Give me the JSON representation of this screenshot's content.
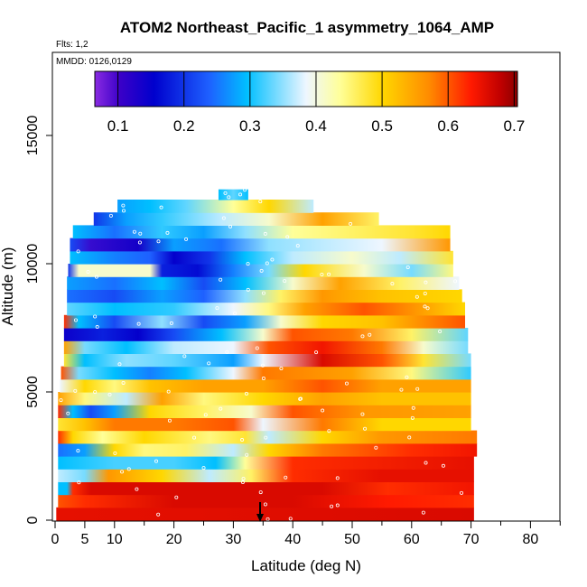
{
  "chart_data": {
    "type": "heatmap",
    "title": "ATOM2 Northeast_Pacific_1 asymmetry_1064_AMP",
    "annotations": {
      "flights": "Flts: 1,2",
      "dates": "MMDD: 0126,0129"
    },
    "xlabel": "Latitude (deg N)",
    "ylabel": "Altitude (m)",
    "xlim": [
      0,
      85
    ],
    "ylim": [
      0,
      17500
    ],
    "x_ticks": [
      0,
      5,
      10,
      20,
      30,
      40,
      50,
      60,
      70,
      80
    ],
    "x_tick_labels": [
      "0",
      "5",
      "10",
      "20",
      "30",
      "40",
      "50",
      "60",
      "70",
      "80"
    ],
    "y_ticks": [
      0,
      5000,
      10000,
      15000
    ],
    "y_tick_labels": [
      "0",
      "5000",
      "10000",
      "15000"
    ],
    "colorbar": {
      "min": 0.065,
      "max": 0.705,
      "ticks": [
        0.1,
        0.2,
        0.3,
        0.4,
        0.5,
        0.6,
        0.7
      ],
      "tick_labels": [
        "0.1",
        "0.2",
        "0.3",
        "0.4",
        "0.5",
        "0.6",
        "0.7"
      ],
      "colors": [
        "#8a2be2",
        "#0000cd",
        "#1e90ff",
        "#00bfff",
        "#f8f8ff",
        "#ffff99",
        "#ffd700",
        "#ff8c00",
        "#ff0000",
        "#b22222",
        "#8b0000"
      ]
    },
    "marker_latitude": 34.5,
    "bands": [
      {
        "y0": 0,
        "y1": 500,
        "x0": 0.2,
        "x1": 70.5,
        "stops": [
          [
            0.2,
            0.65
          ],
          [
            70.5,
            0.66
          ]
        ]
      },
      {
        "y0": 500,
        "y1": 1000,
        "x0": 0.5,
        "x1": 70.5,
        "stops": [
          [
            0.5,
            0.6
          ],
          [
            5,
            0.62
          ],
          [
            20,
            0.66
          ],
          [
            40,
            0.66
          ],
          [
            56,
            0.63
          ],
          [
            70.5,
            0.62
          ]
        ]
      },
      {
        "y0": 1000,
        "y1": 1500,
        "x0": 0.5,
        "x1": 70.5,
        "stops": [
          [
            0.5,
            0.3
          ],
          [
            2,
            0.3
          ],
          [
            3,
            0.62
          ],
          [
            6,
            0.66
          ],
          [
            30,
            0.66
          ],
          [
            45,
            0.66
          ],
          [
            56,
            0.62
          ],
          [
            70.5,
            0.64
          ]
        ]
      },
      {
        "y0": 1500,
        "y1": 2000,
        "x0": 0.5,
        "x1": 70.5,
        "stops": [
          [
            0.5,
            0.38
          ],
          [
            5,
            0.35
          ],
          [
            9,
            0.56
          ],
          [
            18,
            0.5
          ],
          [
            26,
            0.38
          ],
          [
            33,
            0.46
          ],
          [
            40,
            0.62
          ],
          [
            55,
            0.65
          ],
          [
            70.5,
            0.65
          ]
        ]
      },
      {
        "y0": 2000,
        "y1": 2500,
        "x0": 0.5,
        "x1": 70.5,
        "stops": [
          [
            0.5,
            0.3
          ],
          [
            10,
            0.33
          ],
          [
            20,
            0.33
          ],
          [
            27,
            0.3
          ],
          [
            32,
            0.44
          ],
          [
            40,
            0.62
          ],
          [
            70.5,
            0.65
          ]
        ]
      },
      {
        "y0": 2500,
        "y1": 3000,
        "x0": 0.5,
        "x1": 71,
        "stops": [
          [
            0.5,
            0.25
          ],
          [
            5,
            0.28
          ],
          [
            10,
            0.5
          ],
          [
            15,
            0.45
          ],
          [
            22,
            0.46
          ],
          [
            30,
            0.38
          ],
          [
            36,
            0.5
          ],
          [
            45,
            0.58
          ],
          [
            60,
            0.62
          ],
          [
            71,
            0.64
          ]
        ]
      },
      {
        "y0": 3000,
        "y1": 3500,
        "x0": 0.5,
        "x1": 71,
        "stops": [
          [
            0.5,
            0.62
          ],
          [
            3,
            0.5
          ],
          [
            8,
            0.44
          ],
          [
            15,
            0.5
          ],
          [
            26,
            0.45
          ],
          [
            32,
            0.48
          ],
          [
            36,
            0.38
          ],
          [
            45,
            0.5
          ],
          [
            55,
            0.56
          ],
          [
            71,
            0.58
          ]
        ]
      },
      {
        "y0": 3500,
        "y1": 4000,
        "x0": 0.5,
        "x1": 70,
        "stops": [
          [
            0.5,
            0.48
          ],
          [
            5,
            0.52
          ],
          [
            10,
            0.58
          ],
          [
            20,
            0.58
          ],
          [
            30,
            0.6
          ],
          [
            35,
            0.4
          ],
          [
            45,
            0.58
          ],
          [
            55,
            0.5
          ],
          [
            70,
            0.5
          ]
        ]
      },
      {
        "y0": 4000,
        "y1": 4500,
        "x0": 0.5,
        "x1": 70,
        "stops": [
          [
            0.5,
            0.62
          ],
          [
            3,
            0.3
          ],
          [
            6,
            0.22
          ],
          [
            10,
            0.28
          ],
          [
            16,
            0.5
          ],
          [
            25,
            0.46
          ],
          [
            33,
            0.42
          ],
          [
            40,
            0.6
          ],
          [
            52,
            0.56
          ],
          [
            70,
            0.55
          ]
        ]
      },
      {
        "y0": 4500,
        "y1": 5000,
        "x0": 0.5,
        "x1": 70,
        "stops": [
          [
            0.5,
            0.55
          ],
          [
            5,
            0.45
          ],
          [
            12,
            0.38
          ],
          [
            18,
            0.55
          ],
          [
            25,
            0.45
          ],
          [
            35,
            0.5
          ],
          [
            45,
            0.55
          ],
          [
            55,
            0.52
          ],
          [
            70,
            0.52
          ]
        ]
      },
      {
        "y0": 5000,
        "y1": 5500,
        "x0": 0.8,
        "x1": 70,
        "stops": [
          [
            0.8,
            0.4
          ],
          [
            5,
            0.5
          ],
          [
            10,
            0.45
          ],
          [
            16,
            0.52
          ],
          [
            25,
            0.55
          ],
          [
            35,
            0.55
          ],
          [
            45,
            0.6
          ],
          [
            55,
            0.55
          ],
          [
            70,
            0.55
          ]
        ]
      },
      {
        "y0": 5500,
        "y1": 6000,
        "x0": 1,
        "x1": 70,
        "stops": [
          [
            1,
            0.6
          ],
          [
            4,
            0.35
          ],
          [
            10,
            0.3
          ],
          [
            16,
            0.26
          ],
          [
            22,
            0.3
          ],
          [
            30,
            0.4
          ],
          [
            35,
            0.58
          ],
          [
            50,
            0.55
          ],
          [
            60,
            0.45
          ],
          [
            70,
            0.32
          ]
        ]
      },
      {
        "y0": 6000,
        "y1": 6500,
        "x0": 1.5,
        "x1": 70,
        "stops": [
          [
            1.5,
            0.48
          ],
          [
            5,
            0.3
          ],
          [
            12,
            0.36
          ],
          [
            20,
            0.34
          ],
          [
            30,
            0.28
          ],
          [
            35,
            0.4
          ],
          [
            45,
            0.66
          ],
          [
            55,
            0.6
          ],
          [
            62,
            0.48
          ],
          [
            70,
            0.35
          ]
        ]
      },
      {
        "y0": 6500,
        "y1": 7000,
        "x0": 1.5,
        "x1": 69.5,
        "stops": [
          [
            1.5,
            0.55
          ],
          [
            5,
            0.35
          ],
          [
            12,
            0.3
          ],
          [
            20,
            0.38
          ],
          [
            30,
            0.4
          ],
          [
            36,
            0.6
          ],
          [
            45,
            0.64
          ],
          [
            55,
            0.58
          ],
          [
            62,
            0.42
          ],
          [
            69.5,
            0.35
          ]
        ]
      },
      {
        "y0": 7000,
        "y1": 7500,
        "x0": 1.5,
        "x1": 69.5,
        "stops": [
          [
            1.5,
            0.12
          ],
          [
            8,
            0.18
          ],
          [
            14,
            0.14
          ],
          [
            20,
            0.22
          ],
          [
            28,
            0.3
          ],
          [
            35,
            0.42
          ],
          [
            40,
            0.6
          ],
          [
            50,
            0.58
          ],
          [
            60,
            0.46
          ],
          [
            69.5,
            0.34
          ]
        ]
      },
      {
        "y0": 7500,
        "y1": 8000,
        "x0": 1.5,
        "x1": 69,
        "stops": [
          [
            1.5,
            0.62
          ],
          [
            4,
            0.3
          ],
          [
            10,
            0.22
          ],
          [
            18,
            0.36
          ],
          [
            25,
            0.22
          ],
          [
            32,
            0.28
          ],
          [
            38,
            0.42
          ],
          [
            45,
            0.5
          ],
          [
            55,
            0.52
          ],
          [
            69,
            0.6
          ]
        ]
      },
      {
        "y0": 8000,
        "y1": 8500,
        "x0": 2,
        "x1": 69,
        "stops": [
          [
            2,
            0.34
          ],
          [
            10,
            0.3
          ],
          [
            20,
            0.32
          ],
          [
            30,
            0.4
          ],
          [
            36,
            0.45
          ],
          [
            42,
            0.55
          ],
          [
            52,
            0.6
          ],
          [
            62,
            0.55
          ],
          [
            69,
            0.5
          ]
        ]
      },
      {
        "y0": 8500,
        "y1": 9000,
        "x0": 2,
        "x1": 68.5,
        "stops": [
          [
            2,
            0.25
          ],
          [
            10,
            0.22
          ],
          [
            18,
            0.28
          ],
          [
            25,
            0.24
          ],
          [
            32,
            0.36
          ],
          [
            38,
            0.46
          ],
          [
            45,
            0.56
          ],
          [
            55,
            0.52
          ],
          [
            68.5,
            0.5
          ]
        ]
      },
      {
        "y0": 9000,
        "y1": 9500,
        "x0": 2,
        "x1": 68,
        "stops": [
          [
            2,
            0.28
          ],
          [
            10,
            0.25
          ],
          [
            18,
            0.3
          ],
          [
            25,
            0.22
          ],
          [
            32,
            0.3
          ],
          [
            40,
            0.42
          ],
          [
            48,
            0.55
          ],
          [
            58,
            0.46
          ],
          [
            68,
            0.4
          ]
        ]
      },
      {
        "y0": 9500,
        "y1": 10000,
        "x0": 2.2,
        "x1": 67,
        "stops": [
          [
            2.2,
            0.2
          ],
          [
            4,
            0.42
          ],
          [
            16,
            0.42
          ],
          [
            18,
            0.18
          ],
          [
            24,
            0.16
          ],
          [
            30,
            0.26
          ],
          [
            36,
            0.35
          ],
          [
            42,
            0.5
          ],
          [
            52,
            0.42
          ],
          [
            60,
            0.35
          ],
          [
            67,
            0.45
          ]
        ]
      },
      {
        "y0": 10000,
        "y1": 10500,
        "x0": 2.5,
        "x1": 67,
        "stops": [
          [
            2.5,
            0.3
          ],
          [
            10,
            0.26
          ],
          [
            16,
            0.24
          ],
          [
            20,
            0.14
          ],
          [
            26,
            0.2
          ],
          [
            32,
            0.3
          ],
          [
            40,
            0.38
          ],
          [
            50,
            0.42
          ],
          [
            58,
            0.38
          ],
          [
            67,
            0.48
          ]
        ]
      },
      {
        "y0": 10500,
        "y1": 11000,
        "x0": 2.5,
        "x1": 66.5,
        "stops": [
          [
            2.5,
            0.22
          ],
          [
            6,
            0.09
          ],
          [
            14,
            0.1
          ],
          [
            20,
            0.28
          ],
          [
            28,
            0.25
          ],
          [
            36,
            0.36
          ],
          [
            45,
            0.38
          ],
          [
            55,
            0.4
          ],
          [
            66.5,
            0.56
          ]
        ]
      },
      {
        "y0": 11000,
        "y1": 11500,
        "x0": 3,
        "x1": 66.5,
        "stops": [
          [
            3,
            0.3
          ],
          [
            10,
            0.25
          ],
          [
            18,
            0.32
          ],
          [
            25,
            0.28
          ],
          [
            32,
            0.36
          ],
          [
            40,
            0.44
          ],
          [
            50,
            0.46
          ],
          [
            60,
            0.48
          ],
          [
            66.5,
            0.5
          ]
        ]
      },
      {
        "y0": 11500,
        "y1": 12000,
        "x0": 6.5,
        "x1": 54.5,
        "stops": [
          [
            6.5,
            0.2
          ],
          [
            12,
            0.28
          ],
          [
            18,
            0.32
          ],
          [
            28,
            0.38
          ],
          [
            36,
            0.42
          ],
          [
            45,
            0.55
          ],
          [
            54.5,
            0.46
          ]
        ]
      },
      {
        "y0": 12000,
        "y1": 12500,
        "x0": 10.5,
        "x1": 43.5,
        "stops": [
          [
            10.5,
            0.28
          ],
          [
            16,
            0.3
          ],
          [
            22,
            0.34
          ],
          [
            30,
            0.44
          ],
          [
            36,
            0.5
          ],
          [
            43.5,
            0.38
          ]
        ]
      },
      {
        "y0": 12500,
        "y1": 12900,
        "x0": 27.5,
        "x1": 32.5,
        "stops": [
          [
            27.5,
            0.3
          ],
          [
            30,
            0.34
          ],
          [
            32.5,
            0.3
          ]
        ]
      }
    ]
  }
}
